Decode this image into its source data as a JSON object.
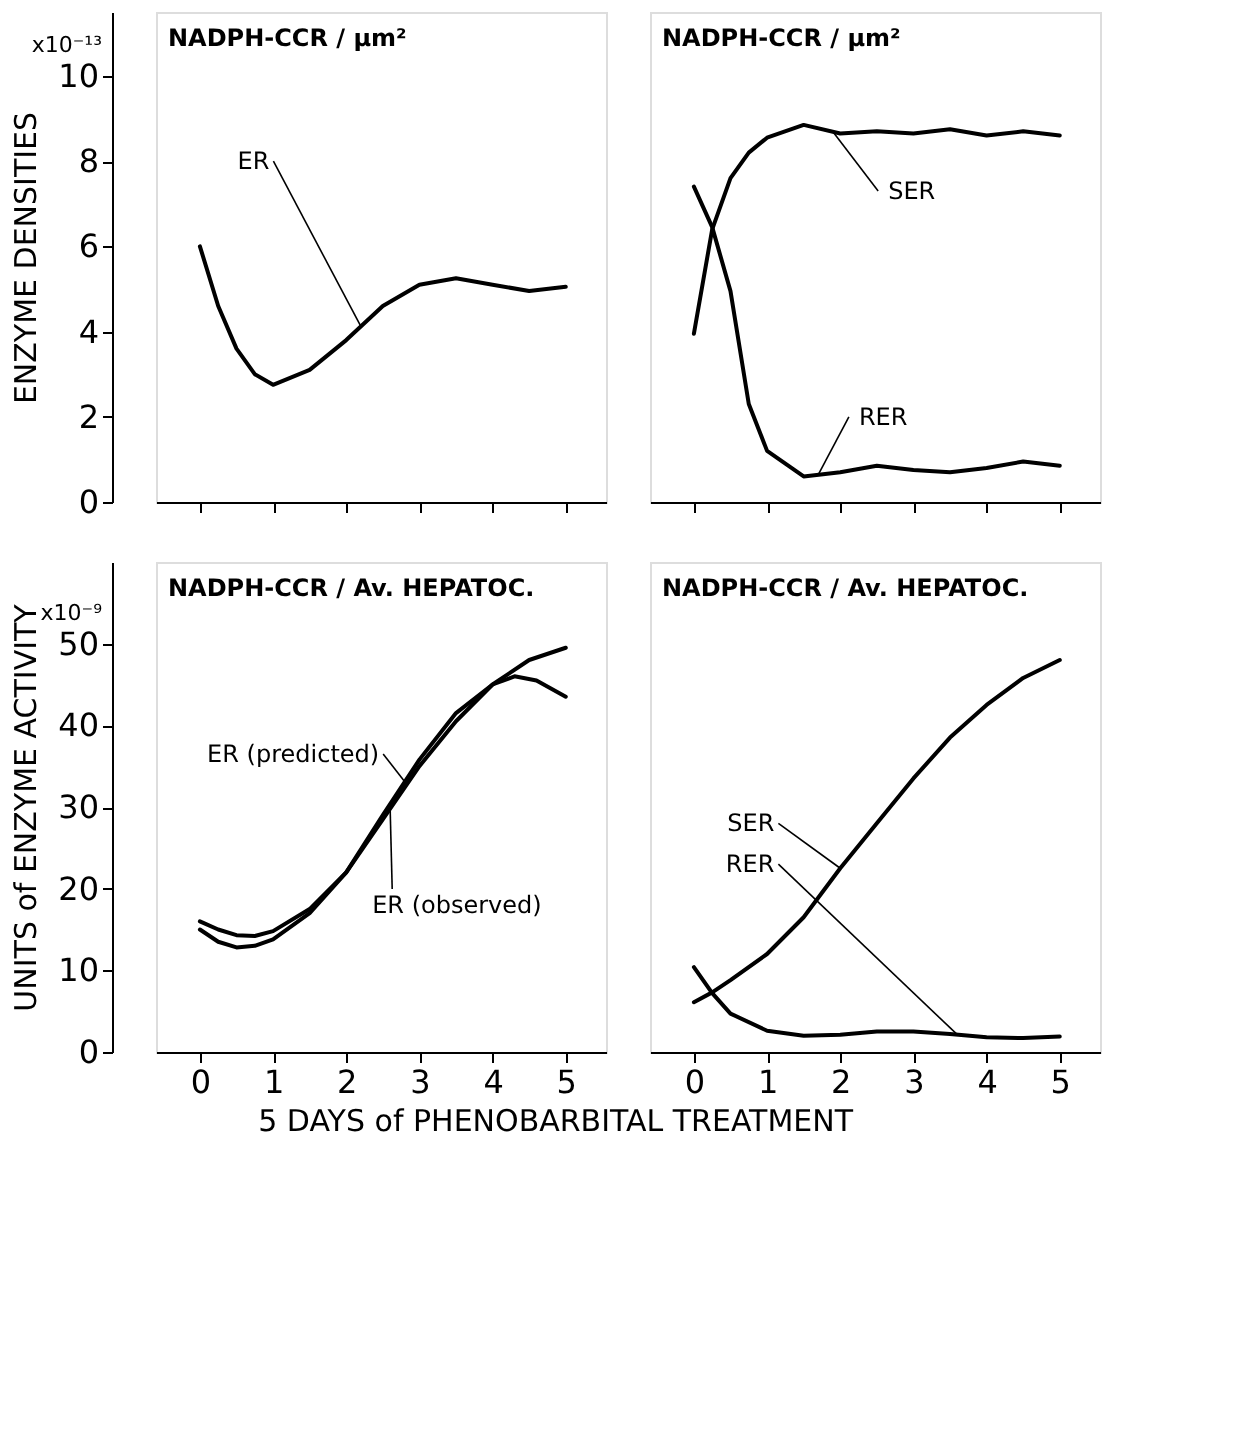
{
  "chart_data": [
    {
      "type": "line",
      "title": "NADPH-CCR / µm²",
      "ylabel": "ENZYME DENSITIES",
      "annotations": [
        "x10⁻¹³"
      ],
      "x": [
        0,
        0.25,
        0.5,
        0.75,
        1,
        1.5,
        2,
        2.5,
        3,
        3.5,
        4,
        4.5,
        5
      ],
      "series": [
        {
          "name": "ER",
          "color": "#000000",
          "values": [
            6.0,
            4.6,
            3.6,
            3.0,
            2.75,
            3.1,
            3.8,
            4.6,
            5.1,
            5.25,
            5.1,
            4.95,
            5.05
          ]
        }
      ],
      "xlim": [
        -0.6,
        5.55
      ],
      "xticks": [
        0,
        1,
        2,
        3,
        4,
        5
      ],
      "ylim": [
        0,
        11.5
      ],
      "yticks": [
        0,
        2,
        4,
        6,
        8,
        10
      ],
      "tick_labels": "y"
    },
    {
      "type": "line",
      "title": "NADPH-CCR / µm²",
      "x": [
        0,
        0.25,
        0.5,
        0.75,
        1,
        1.5,
        2,
        2.5,
        3,
        3.5,
        4,
        4.5,
        5
      ],
      "series": [
        {
          "name": "SER",
          "color": "#000000",
          "values": [
            3.95,
            6.4,
            7.6,
            8.2,
            8.55,
            8.85,
            8.65,
            8.7,
            8.65,
            8.75,
            8.6,
            8.7,
            8.6
          ]
        },
        {
          "name": "RER",
          "color": "#000000",
          "values": [
            7.4,
            6.45,
            4.95,
            2.3,
            1.2,
            0.6,
            0.7,
            0.85,
            0.75,
            0.7,
            0.8,
            0.95,
            0.85
          ]
        }
      ],
      "xlim": [
        -0.6,
        5.55
      ],
      "xticks": [
        0,
        1,
        2,
        3,
        4,
        5
      ],
      "ylim": [
        0,
        11.5
      ],
      "yticks": [
        0,
        2,
        4,
        6,
        8,
        10
      ],
      "tick_labels": false
    },
    {
      "type": "line",
      "title": "NADPH-CCR / Av. HEPATOC.",
      "ylabel": "UNITS of ENZYME ACTIVITY",
      "xlabel": "5 DAYS of PHENOBARBITAL TREATMENT",
      "annotations": [
        "x10⁻⁹"
      ],
      "series": [
        {
          "name": "ER (predicted)",
          "color": "#000000",
          "x": [
            0,
            0.25,
            0.5,
            0.75,
            1,
            1.5,
            2,
            2.5,
            3,
            3.5,
            4,
            4.3,
            4.6,
            5
          ],
          "values": [
            15,
            13.5,
            12.8,
            13,
            13.8,
            17,
            22,
            29,
            35.8,
            41.5,
            45,
            46,
            45.5,
            43.5
          ]
        },
        {
          "name": "ER (observed)",
          "color": "#000000",
          "x": [
            0,
            0.25,
            0.5,
            0.75,
            1,
            1.5,
            2,
            2.5,
            3,
            3.5,
            4,
            4.5,
            5
          ],
          "values": [
            16,
            15,
            14.3,
            14.2,
            14.8,
            17.5,
            22,
            28.5,
            35,
            40.5,
            45,
            48,
            49.5
          ]
        }
      ],
      "xlim": [
        -0.6,
        5.55
      ],
      "xticks": [
        0,
        1,
        2,
        3,
        4,
        5
      ],
      "ylim": [
        0,
        60
      ],
      "yticks": [
        0,
        10,
        20,
        30,
        40,
        50
      ]
    },
    {
      "type": "line",
      "title": "NADPH-CCR / Av. HEPATOC.",
      "x": [
        0,
        0.25,
        0.5,
        1,
        1.5,
        2,
        2.5,
        3,
        3.5,
        4,
        4.5,
        5
      ],
      "series": [
        {
          "name": "SER",
          "color": "#000000",
          "values": [
            6.1,
            7.3,
            8.8,
            12,
            16.5,
            22.5,
            28,
            33.5,
            38.5,
            42.5,
            45.8,
            48
          ]
        },
        {
          "name": "RER",
          "color": "#000000",
          "values": [
            10.4,
            7.2,
            4.7,
            2.6,
            2.0,
            2.1,
            2.5,
            2.5,
            2.2,
            1.8,
            1.7,
            1.9
          ]
        }
      ],
      "xlim": [
        -0.6,
        5.55
      ],
      "xticks": [
        0,
        1,
        2,
        3,
        4,
        5
      ],
      "ylim": [
        0,
        60
      ],
      "yticks": [
        0,
        10,
        20,
        30,
        40,
        50
      ],
      "tick_labels": "x"
    }
  ]
}
